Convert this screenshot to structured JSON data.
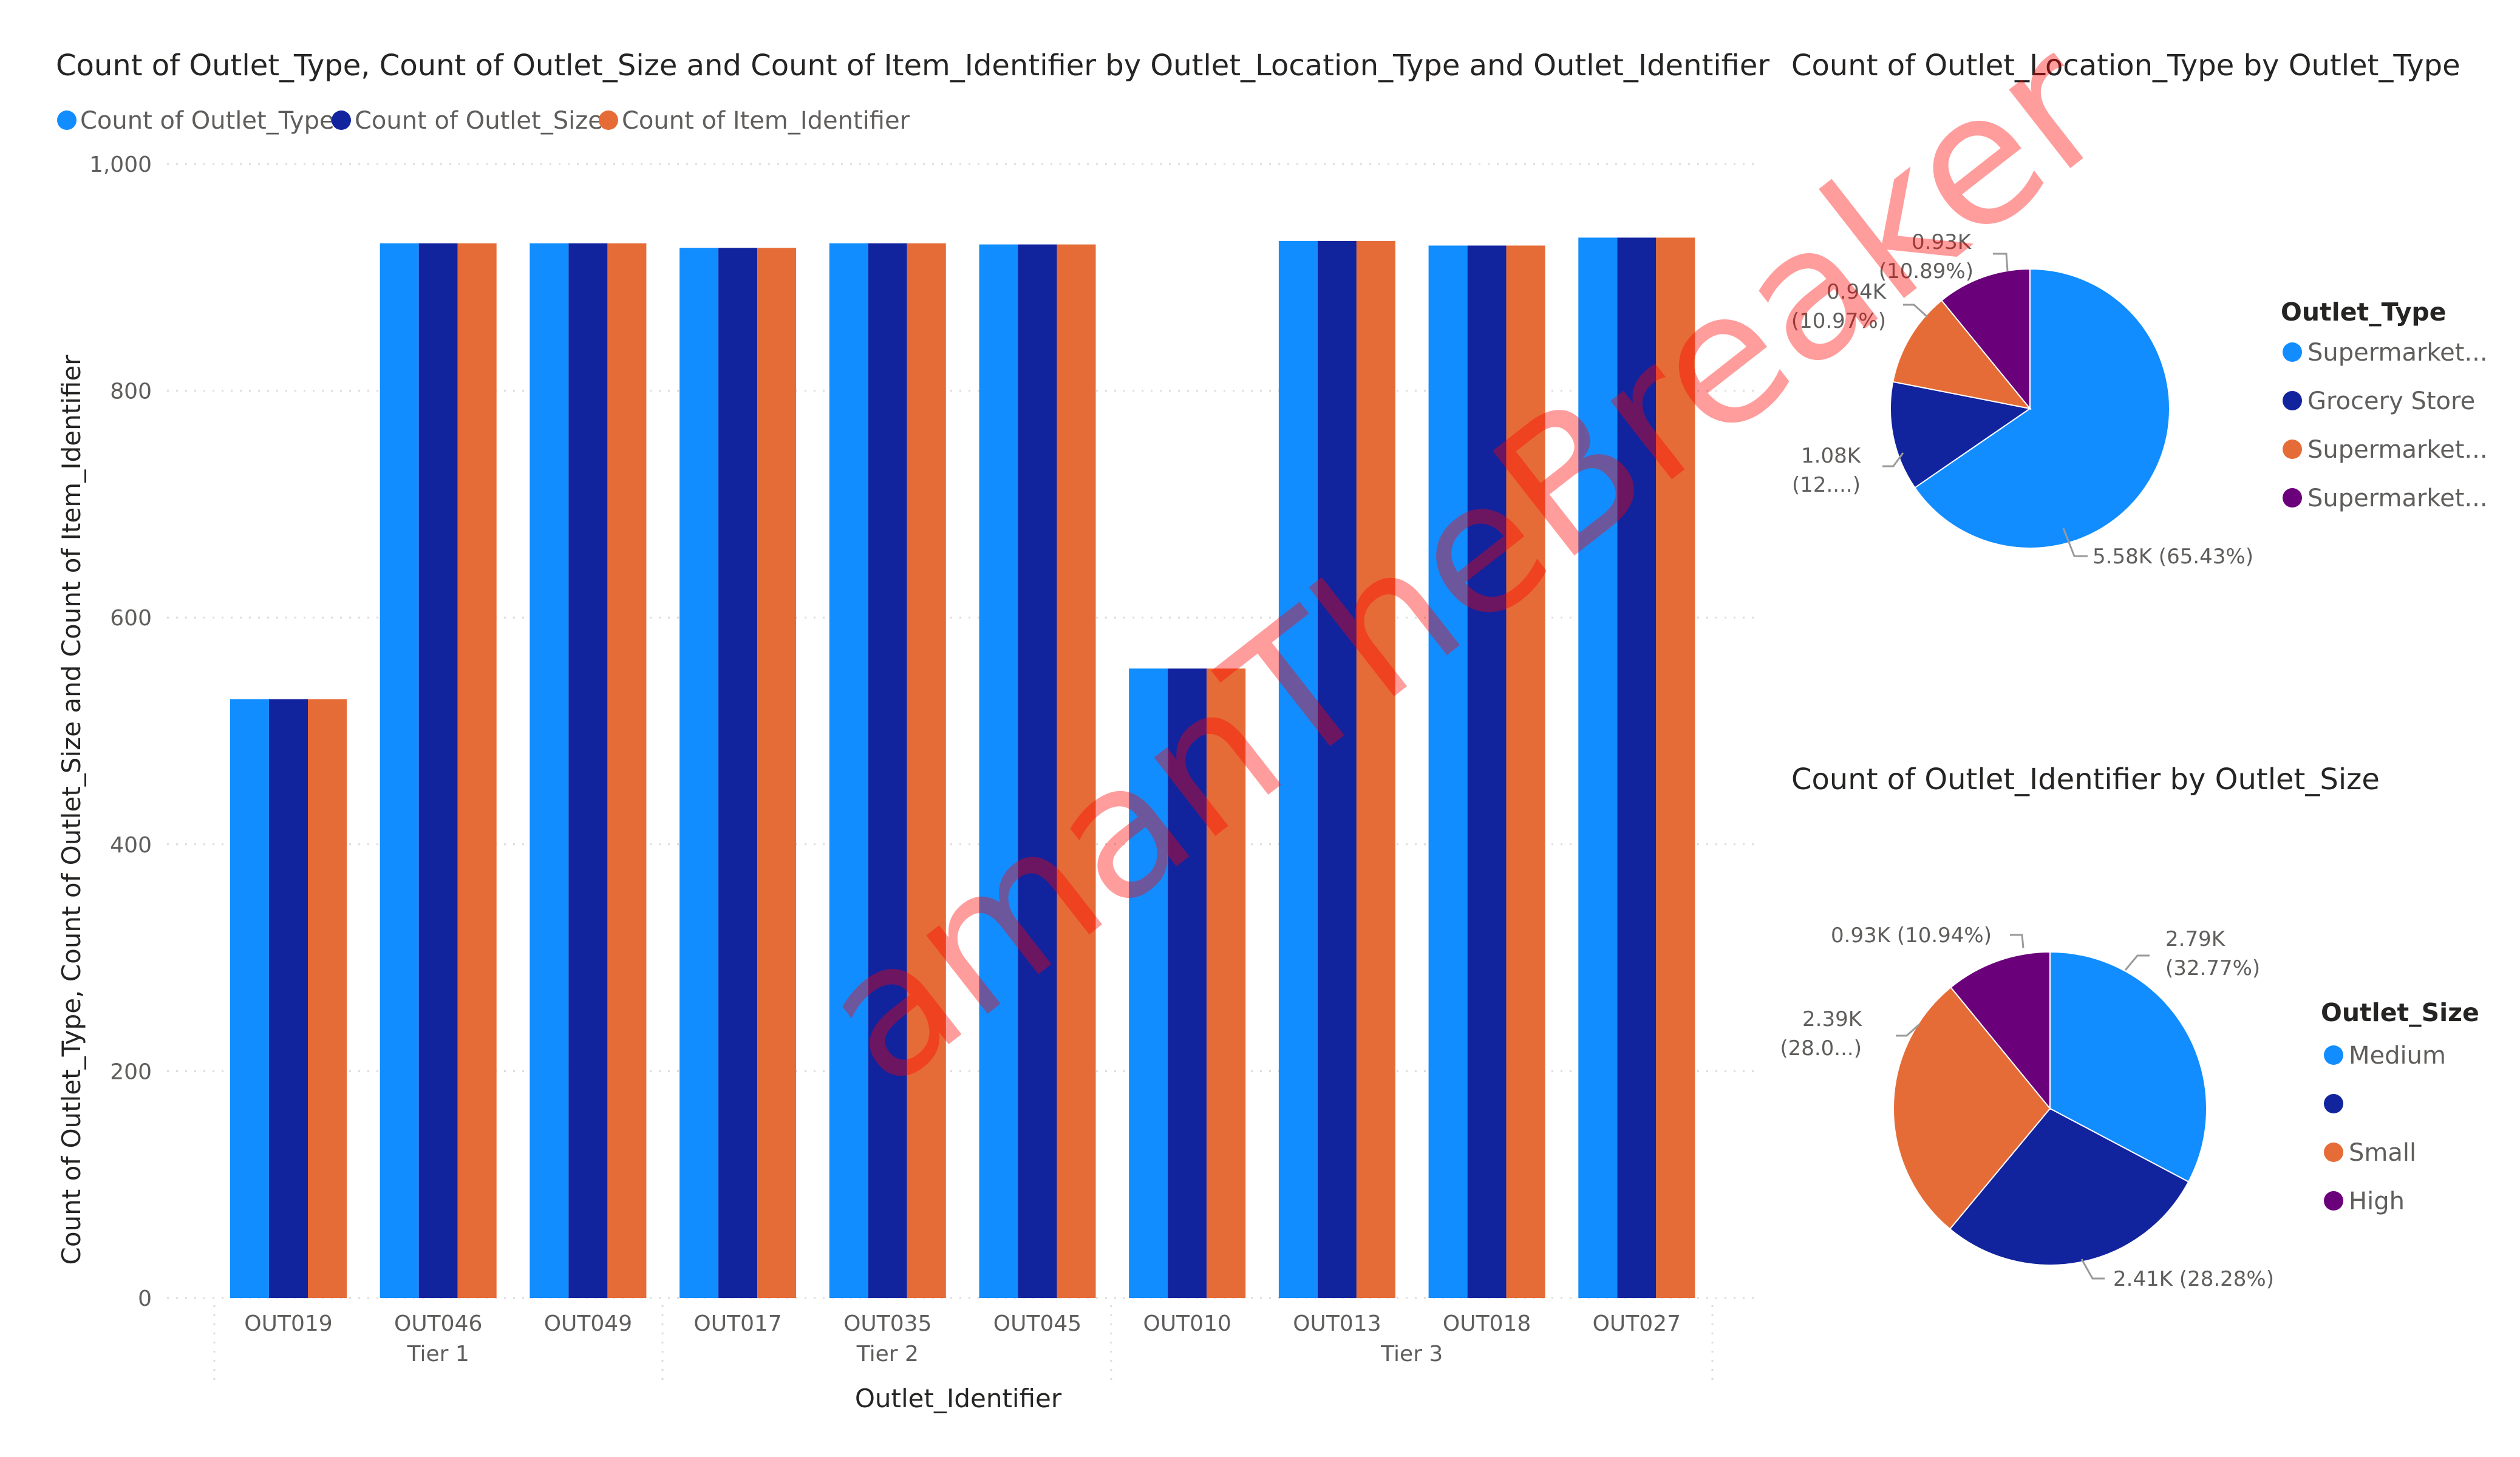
{
  "bar_chart": {
    "title": "Count of Outlet_Type, Count of Outlet_Size and Count of Item_Identifier by Outlet_Location_Type and Outlet_Identifier",
    "legend": [
      "Count of Outlet_Type",
      "Count of Outlet_Size",
      "Count of Item_Identifier"
    ],
    "y_axis_title": "Count of Outlet_Type, Count of Outlet_Size and Count of Item_Identifier",
    "x_axis_title": "Outlet_Identifier",
    "y_ticks": [
      "0",
      "200",
      "400",
      "600",
      "800",
      "1,000"
    ],
    "groups": [
      {
        "label": "Tier 1",
        "start": 0,
        "end": 2
      },
      {
        "label": "Tier 2",
        "start": 3,
        "end": 5
      },
      {
        "label": "Tier 3",
        "start": 6,
        "end": 9
      }
    ]
  },
  "pie_type": {
    "title": "Count of Outlet_Location_Type by Outlet_Type",
    "legend_title": "Outlet_Type",
    "labels": {
      "s0": "5.58K (65.43%)",
      "s1a": "1.08K",
      "s1b": "(12....)",
      "s2a": "0.94K",
      "s2b": "(10.97%)",
      "s3a": "0.93K",
      "s3b": "(10.89%)"
    }
  },
  "pie_size": {
    "title": "Count of Outlet_Identifier by Outlet_Size",
    "legend_title": "Outlet_Size",
    "labels": {
      "s0a": "2.79K",
      "s0b": "(32.77%)",
      "s1": "2.41K (28.28%)",
      "s2a": "2.39K",
      "s2b": "(28.0...)",
      "s3": "0.93K (10.94%)"
    }
  },
  "watermark": "amanTheBreaker",
  "chart_data": [
    {
      "type": "bar",
      "title": "Count of Outlet_Type, Count of Outlet_Size and Count of Item_Identifier by Outlet_Location_Type and Outlet_Identifier",
      "xlabel": "Outlet_Identifier",
      "ylabel": "Count of Outlet_Type, Count of Outlet_Size and Count of Item_Identifier",
      "ylim": [
        0,
        1000
      ],
      "grid": true,
      "legend_position": "top-left",
      "categories": [
        "OUT019",
        "OUT046",
        "OUT049",
        "OUT017",
        "OUT035",
        "OUT045",
        "OUT010",
        "OUT013",
        "OUT018",
        "OUT027"
      ],
      "category_groups": [
        "Tier 1",
        "Tier 1",
        "Tier 1",
        "Tier 2",
        "Tier 2",
        "Tier 2",
        "Tier 3",
        "Tier 3",
        "Tier 3",
        "Tier 3"
      ],
      "series": [
        {
          "name": "Count of Outlet_Type",
          "color": "#118dff",
          "values": [
            528,
            930,
            930,
            926,
            930,
            929,
            555,
            932,
            928,
            935
          ]
        },
        {
          "name": "Count of Outlet_Size",
          "color": "#12239e",
          "values": [
            528,
            930,
            930,
            926,
            930,
            929,
            555,
            932,
            928,
            935
          ]
        },
        {
          "name": "Count of Item_Identifier",
          "color": "#e66c37",
          "values": [
            528,
            930,
            930,
            926,
            930,
            929,
            555,
            932,
            928,
            935
          ]
        }
      ]
    },
    {
      "type": "pie",
      "title": "Count of Outlet_Location_Type by Outlet_Type",
      "legend_title": "Outlet_Type",
      "legend_position": "right",
      "categories": [
        "Supermarket...",
        "Grocery Store",
        "Supermarket...",
        "Supermarket..."
      ],
      "values": [
        5580,
        1080,
        940,
        930
      ],
      "percentages": [
        65.43,
        12.71,
        10.97,
        10.89
      ],
      "colors": [
        "#118dff",
        "#12239e",
        "#e66c37",
        "#6b007b"
      ]
    },
    {
      "type": "pie",
      "title": "Count of Outlet_Identifier by Outlet_Size",
      "legend_title": "Outlet_Size",
      "legend_position": "right",
      "categories": [
        "Medium",
        "",
        "Small",
        "High"
      ],
      "values": [
        2790,
        2410,
        2390,
        930
      ],
      "percentages": [
        32.77,
        28.28,
        28.0,
        10.94
      ],
      "colors": [
        "#118dff",
        "#12239e",
        "#e66c37",
        "#6b007b"
      ]
    }
  ]
}
